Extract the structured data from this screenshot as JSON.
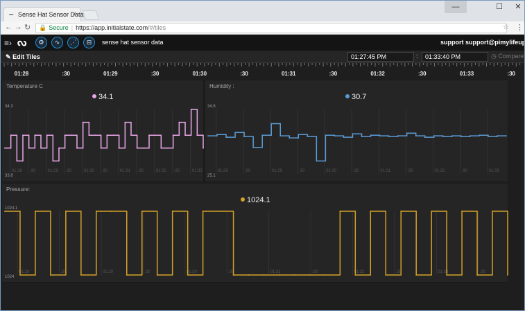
{
  "browser": {
    "tab_title": "Sense Hat Sensor Data",
    "tab_close": "×",
    "url_secure": "Secure",
    "url_host": "https://app.initialstate.com",
    "url_path": "/#/tiles",
    "win_min": "—",
    "win_max": "☐",
    "win_close": "✕"
  },
  "app": {
    "logo": "ᔓ",
    "bucket_name": "sense hat sensor data",
    "support_label": "support",
    "user_email": "support@pimylifeup.com",
    "icons": [
      "settings-icon",
      "waves-icon",
      "chart-icon",
      "inbox-icon"
    ]
  },
  "timecontrol": {
    "edit_tiles": "Edit Tiles",
    "start_time": "01:27:45 PM",
    "end_time": "01:33:40 PM",
    "separator": ":",
    "compare": "Compare"
  },
  "timeline": {
    "labels": [
      "01:28",
      ":30",
      "01:29",
      ":30",
      "01:30",
      ":30",
      "01:31",
      ":30",
      "01:32",
      ":30",
      "01:33",
      ":30"
    ]
  },
  "colors": {
    "temperature": "#e9a6e9",
    "humidity": "#5b9bd5",
    "pressure": "#d4a12a"
  },
  "tiles": {
    "temperature": {
      "title": "Temperature C",
      "value": "34.1",
      "ymax": "34.3",
      "ymin": "33.8",
      "xlabels": [
        "01:28",
        ":30",
        "01:29",
        ":30",
        "01:30",
        ":30",
        "01:31",
        ":30",
        "01:32",
        ":30",
        "01:33"
      ]
    },
    "humidity": {
      "title": "Humidity :",
      "value": "30.7",
      "ymax": "34.6",
      "ymin": "25.1",
      "xlabels": [
        "01:28",
        ":30",
        "01:29",
        ":30",
        "01:30",
        ":30",
        "01:31",
        ":30",
        "01:32",
        ":30",
        "01:33"
      ]
    },
    "pressure": {
      "title": "Pressure:",
      "value": "1024.1",
      "ymax": "1024.1",
      "ymin": "1024",
      "xlabels": [
        "01:28",
        ":30",
        "01:29",
        ":30",
        "01:30",
        ":30",
        "01:31",
        ":30",
        "01:32",
        ":30",
        "01:33",
        ":30"
      ]
    }
  },
  "chart_data": [
    {
      "type": "line",
      "series": [
        {
          "values": [
            34.0,
            34.1,
            33.9,
            34.1,
            34.0,
            34.1,
            34.0,
            34.1,
            33.9,
            34.0,
            34.1,
            34.1,
            34.0,
            34.2,
            34.1,
            34.1,
            34.0,
            34.1,
            34.1,
            34.0,
            34.2,
            34.1,
            34.0,
            34.0,
            34.1,
            34.1,
            34.0,
            34.0,
            34.1,
            34.2,
            34.1,
            34.3,
            34.1,
            34.0
          ]
        }
      ],
      "ylim": [
        33.8,
        34.3
      ]
    },
    {
      "type": "line",
      "series": [
        {
          "values": [
            30.7,
            30.9,
            30.5,
            31.2,
            30.6,
            29.0,
            30.8,
            32.5,
            30.7,
            30.4,
            30.9,
            30.6,
            27.0,
            30.8,
            30.7,
            30.5,
            31.0,
            30.6,
            30.8,
            30.7,
            30.6,
            30.7,
            31.1,
            30.7,
            30.5,
            30.7,
            30.6,
            30.7,
            30.6,
            30.7,
            30.8,
            30.6,
            30.7,
            30.7
          ]
        }
      ],
      "ylim": [
        25.1,
        34.6
      ]
    },
    {
      "type": "line",
      "series": [
        {
          "values": [
            1024.1,
            1024.0,
            1024.1,
            1024.0,
            1024.1,
            1024.0,
            1024.1,
            1024.1,
            1024.0,
            1024.1,
            1024.0,
            1024.1,
            1024.0,
            1024.1,
            1024.1,
            1024.0,
            1024.0,
            1024.0,
            1024.0,
            1024.0,
            1024.0,
            1024.0,
            1024.1,
            1024.0,
            1024.1,
            1024.0,
            1024.1,
            1024.0,
            1024.1,
            1024.0,
            1024.1,
            1024.0,
            1024.1,
            1024.0
          ]
        }
      ],
      "ylim": [
        1024.0,
        1024.1
      ]
    }
  ]
}
